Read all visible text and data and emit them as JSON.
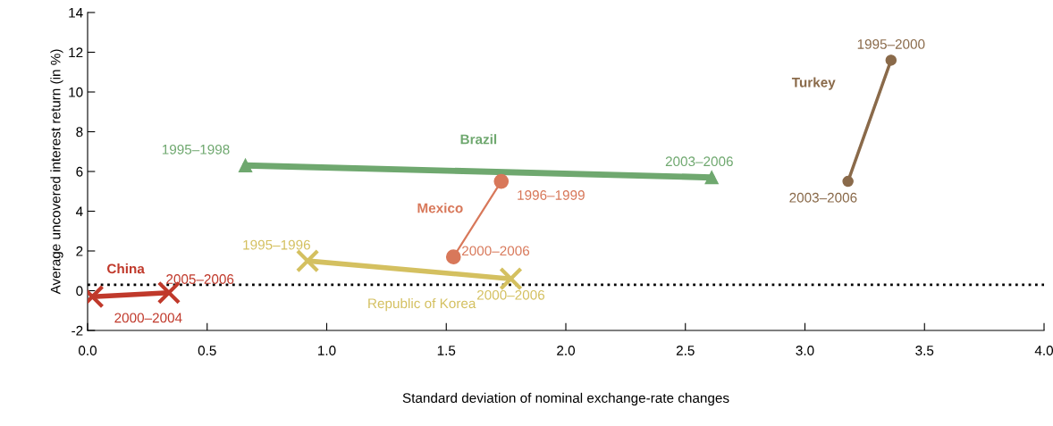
{
  "chart_data": {
    "type": "line",
    "xlabel": "Standard deviation of nominal exchange-rate changes",
    "ylabel": "Average uncovered interest return (in %)",
    "xlim": [
      0,
      4
    ],
    "ylim": [
      -2,
      14
    ],
    "xticks": [
      {
        "value": 0,
        "label": "0.0"
      },
      {
        "value": 0.5,
        "label": "0.5"
      },
      {
        "value": 1,
        "label": "1.0"
      },
      {
        "value": 1.5,
        "label": "1.5"
      },
      {
        "value": 2,
        "label": "2.0"
      },
      {
        "value": 2.5,
        "label": "2.5"
      },
      {
        "value": 3,
        "label": "3.0"
      },
      {
        "value": 3.5,
        "label": "3.5"
      },
      {
        "value": 4,
        "label": "4.0"
      }
    ],
    "yticks": [
      -2,
      0,
      2,
      4,
      6,
      8,
      10,
      12,
      14
    ],
    "grid": false,
    "legend": false,
    "line_style": "solid",
    "ref_lines": [
      {
        "axis": "y",
        "value": 0.3,
        "color": "#000000",
        "line_style": "dotted"
      }
    ],
    "series": [
      {
        "name": "Brazil",
        "color": "#6fa86f",
        "marker": "triangle",
        "x": [
          0.66,
          2.61
        ],
        "values": [
          6.3,
          5.7
        ],
        "value_labels": [
          "1995–1998",
          "2003–2006"
        ]
      },
      {
        "name": "Mexico",
        "color": "#d8785a",
        "marker": "circle",
        "x": [
          1.73,
          1.53
        ],
        "values": [
          5.5,
          1.7
        ],
        "value_labels": [
          "1996–1999",
          "2000–2006"
        ]
      },
      {
        "name": "Turkey",
        "color": "#8a6a4a",
        "marker": "circle",
        "x": [
          3.36,
          3.18
        ],
        "values": [
          11.6,
          5.5
        ],
        "value_labels": [
          "1995–2000",
          "2003–2006"
        ]
      },
      {
        "name": "Republic of Korea",
        "color": "#d4c060",
        "marker": "cross",
        "x": [
          0.92,
          1.77
        ],
        "values": [
          1.5,
          0.6
        ],
        "value_labels": [
          "1995–1996",
          "2000–2006"
        ]
      },
      {
        "name": "China",
        "color": "#c0392b",
        "marker": "cross",
        "x": [
          0.02,
          0.34
        ],
        "values": [
          -0.3,
          -0.1
        ],
        "value_labels": [
          "2000–2004",
          "2005–2006"
        ]
      }
    ]
  }
}
